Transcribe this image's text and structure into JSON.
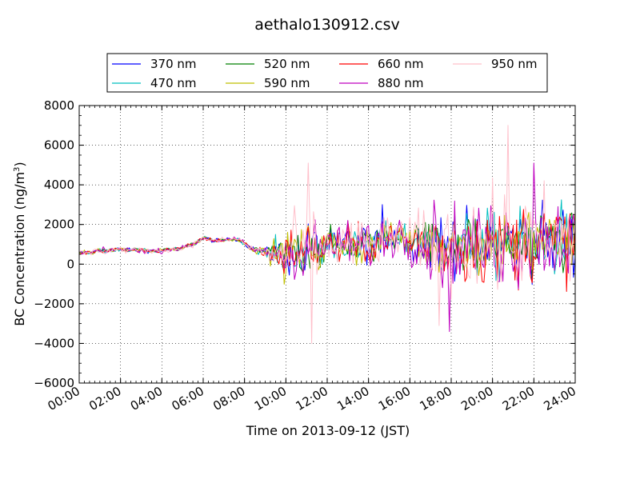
{
  "chart_data": {
    "type": "line",
    "title": "aethalo130912.csv",
    "xlabel": "Time on 2013-09-12 (JST)",
    "ylabel": "BC Concentration (ng/m",
    "ylabel_superscript": "3",
    "ylabel_suffix": ")",
    "x_unit": "hour",
    "xlim": [
      "00:00",
      "24:00"
    ],
    "ylim": [
      -6000,
      8000
    ],
    "x_ticks": [
      "00:00",
      "02:00",
      "04:00",
      "06:00",
      "08:00",
      "10:00",
      "12:00",
      "14:00",
      "16:00",
      "18:00",
      "20:00",
      "22:00",
      "24:00"
    ],
    "y_ticks": [
      "−6000",
      "−4000",
      "−2000",
      "0",
      "2000",
      "4000",
      "6000",
      "8000"
    ],
    "grid": true,
    "legend_position": "top, above plot",
    "series": [
      {
        "name": "370 nm",
        "color": "#0000ff"
      },
      {
        "name": "470 nm",
        "color": "#00bfbf"
      },
      {
        "name": "520 nm",
        "color": "#008000"
      },
      {
        "name": "590 nm",
        "color": "#bfbf00"
      },
      {
        "name": "660 nm",
        "color": "#ff0000"
      },
      {
        "name": "880 nm",
        "color": "#bf00bf"
      },
      {
        "name": "950 nm",
        "color": "#ffc0cb"
      }
    ],
    "profile": {
      "x": [
        "00:00",
        "00:30",
        "01:00",
        "01:30",
        "02:00",
        "02:30",
        "03:00",
        "03:30",
        "04:00",
        "04:30",
        "05:00",
        "05:30",
        "06:00",
        "06:30",
        "07:00",
        "07:30",
        "08:00",
        "08:30",
        "09:00",
        "09:30",
        "10:00",
        "10:30",
        "11:00",
        "11:30",
        "12:00",
        "12:30",
        "13:00",
        "13:30",
        "14:00",
        "14:30",
        "15:00",
        "15:30",
        "16:00",
        "16:30",
        "17:00",
        "17:30",
        "18:00",
        "18:30",
        "19:00",
        "19:30",
        "20:00",
        "20:30",
        "21:00",
        "21:30",
        "22:00",
        "22:30",
        "23:00",
        "23:30",
        "24:00"
      ],
      "base": [
        550,
        600,
        650,
        700,
        750,
        700,
        700,
        650,
        700,
        750,
        800,
        1000,
        1300,
        1200,
        1200,
        1300,
        1050,
        700,
        600,
        500,
        500,
        600,
        750,
        800,
        900,
        950,
        1000,
        900,
        950,
        1100,
        1400,
        1450,
        1200,
        1100,
        1100,
        1050,
        1000,
        1000,
        1000,
        950,
        950,
        1000,
        1100,
        1100,
        1150,
        1150,
        1200,
        1200,
        1200
      ],
      "noise": [
        100,
        120,
        120,
        120,
        120,
        100,
        100,
        100,
        100,
        100,
        100,
        100,
        100,
        100,
        100,
        100,
        100,
        150,
        250,
        700,
        1100,
        1200,
        1300,
        1200,
        800,
        900,
        900,
        1000,
        900,
        800,
        700,
        800,
        900,
        1100,
        1500,
        1600,
        1700,
        1700,
        1700,
        1600,
        1600,
        1700,
        1800,
        1800,
        1700,
        1700,
        1700,
        1700,
        1700
      ]
    },
    "peak_annotations": [
      {
        "series": "950 nm",
        "x": "20:45",
        "y": 7000
      },
      {
        "series": "950 nm",
        "x": "11:15",
        "y": -4000
      },
      {
        "series": "950 nm",
        "x": "11:05",
        "y": 5100
      },
      {
        "series": "880 nm",
        "x": "22:00",
        "y": 5100
      },
      {
        "series": "880 nm",
        "x": "17:55",
        "y": -3400
      },
      {
        "series": "950 nm",
        "x": "17:25",
        "y": -3100
      },
      {
        "series": "370 nm",
        "x": "14:40",
        "y": 3000
      }
    ]
  }
}
